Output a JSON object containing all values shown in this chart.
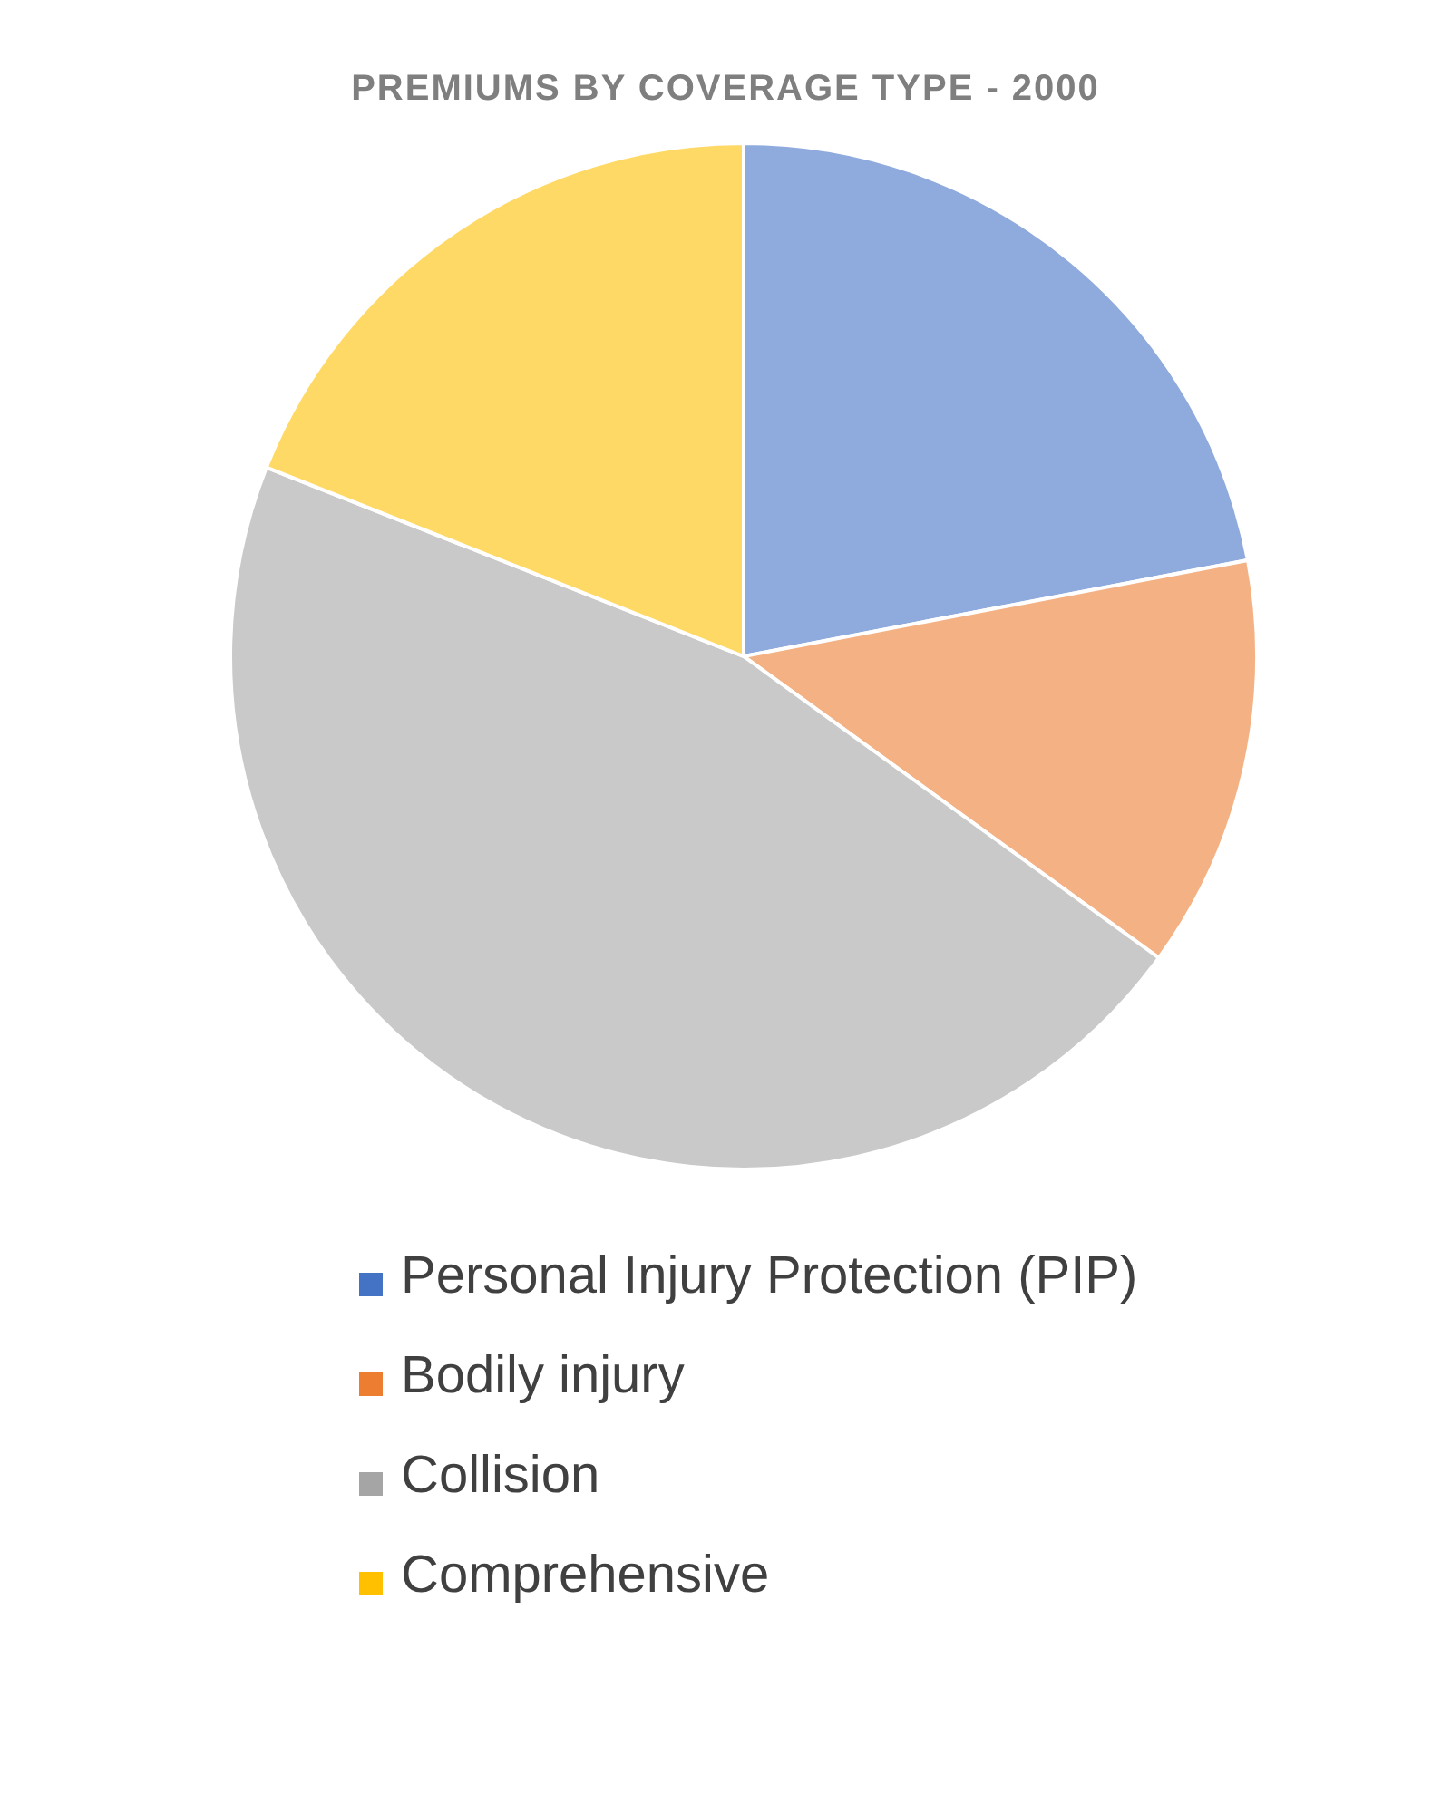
{
  "chart_data": {
    "type": "pie",
    "title": "PREMIUMS BY COVERAGE TYPE - 2000",
    "categories": [
      "Personal Injury Protection (PIP)",
      "Bodily injury",
      "Collision",
      "Comprehensive"
    ],
    "values": [
      22,
      13,
      46,
      19
    ],
    "colors": [
      "#4472c4",
      "#ed7d31",
      "#a5a5a5",
      "#ffc000"
    ],
    "legend": "bottom"
  }
}
